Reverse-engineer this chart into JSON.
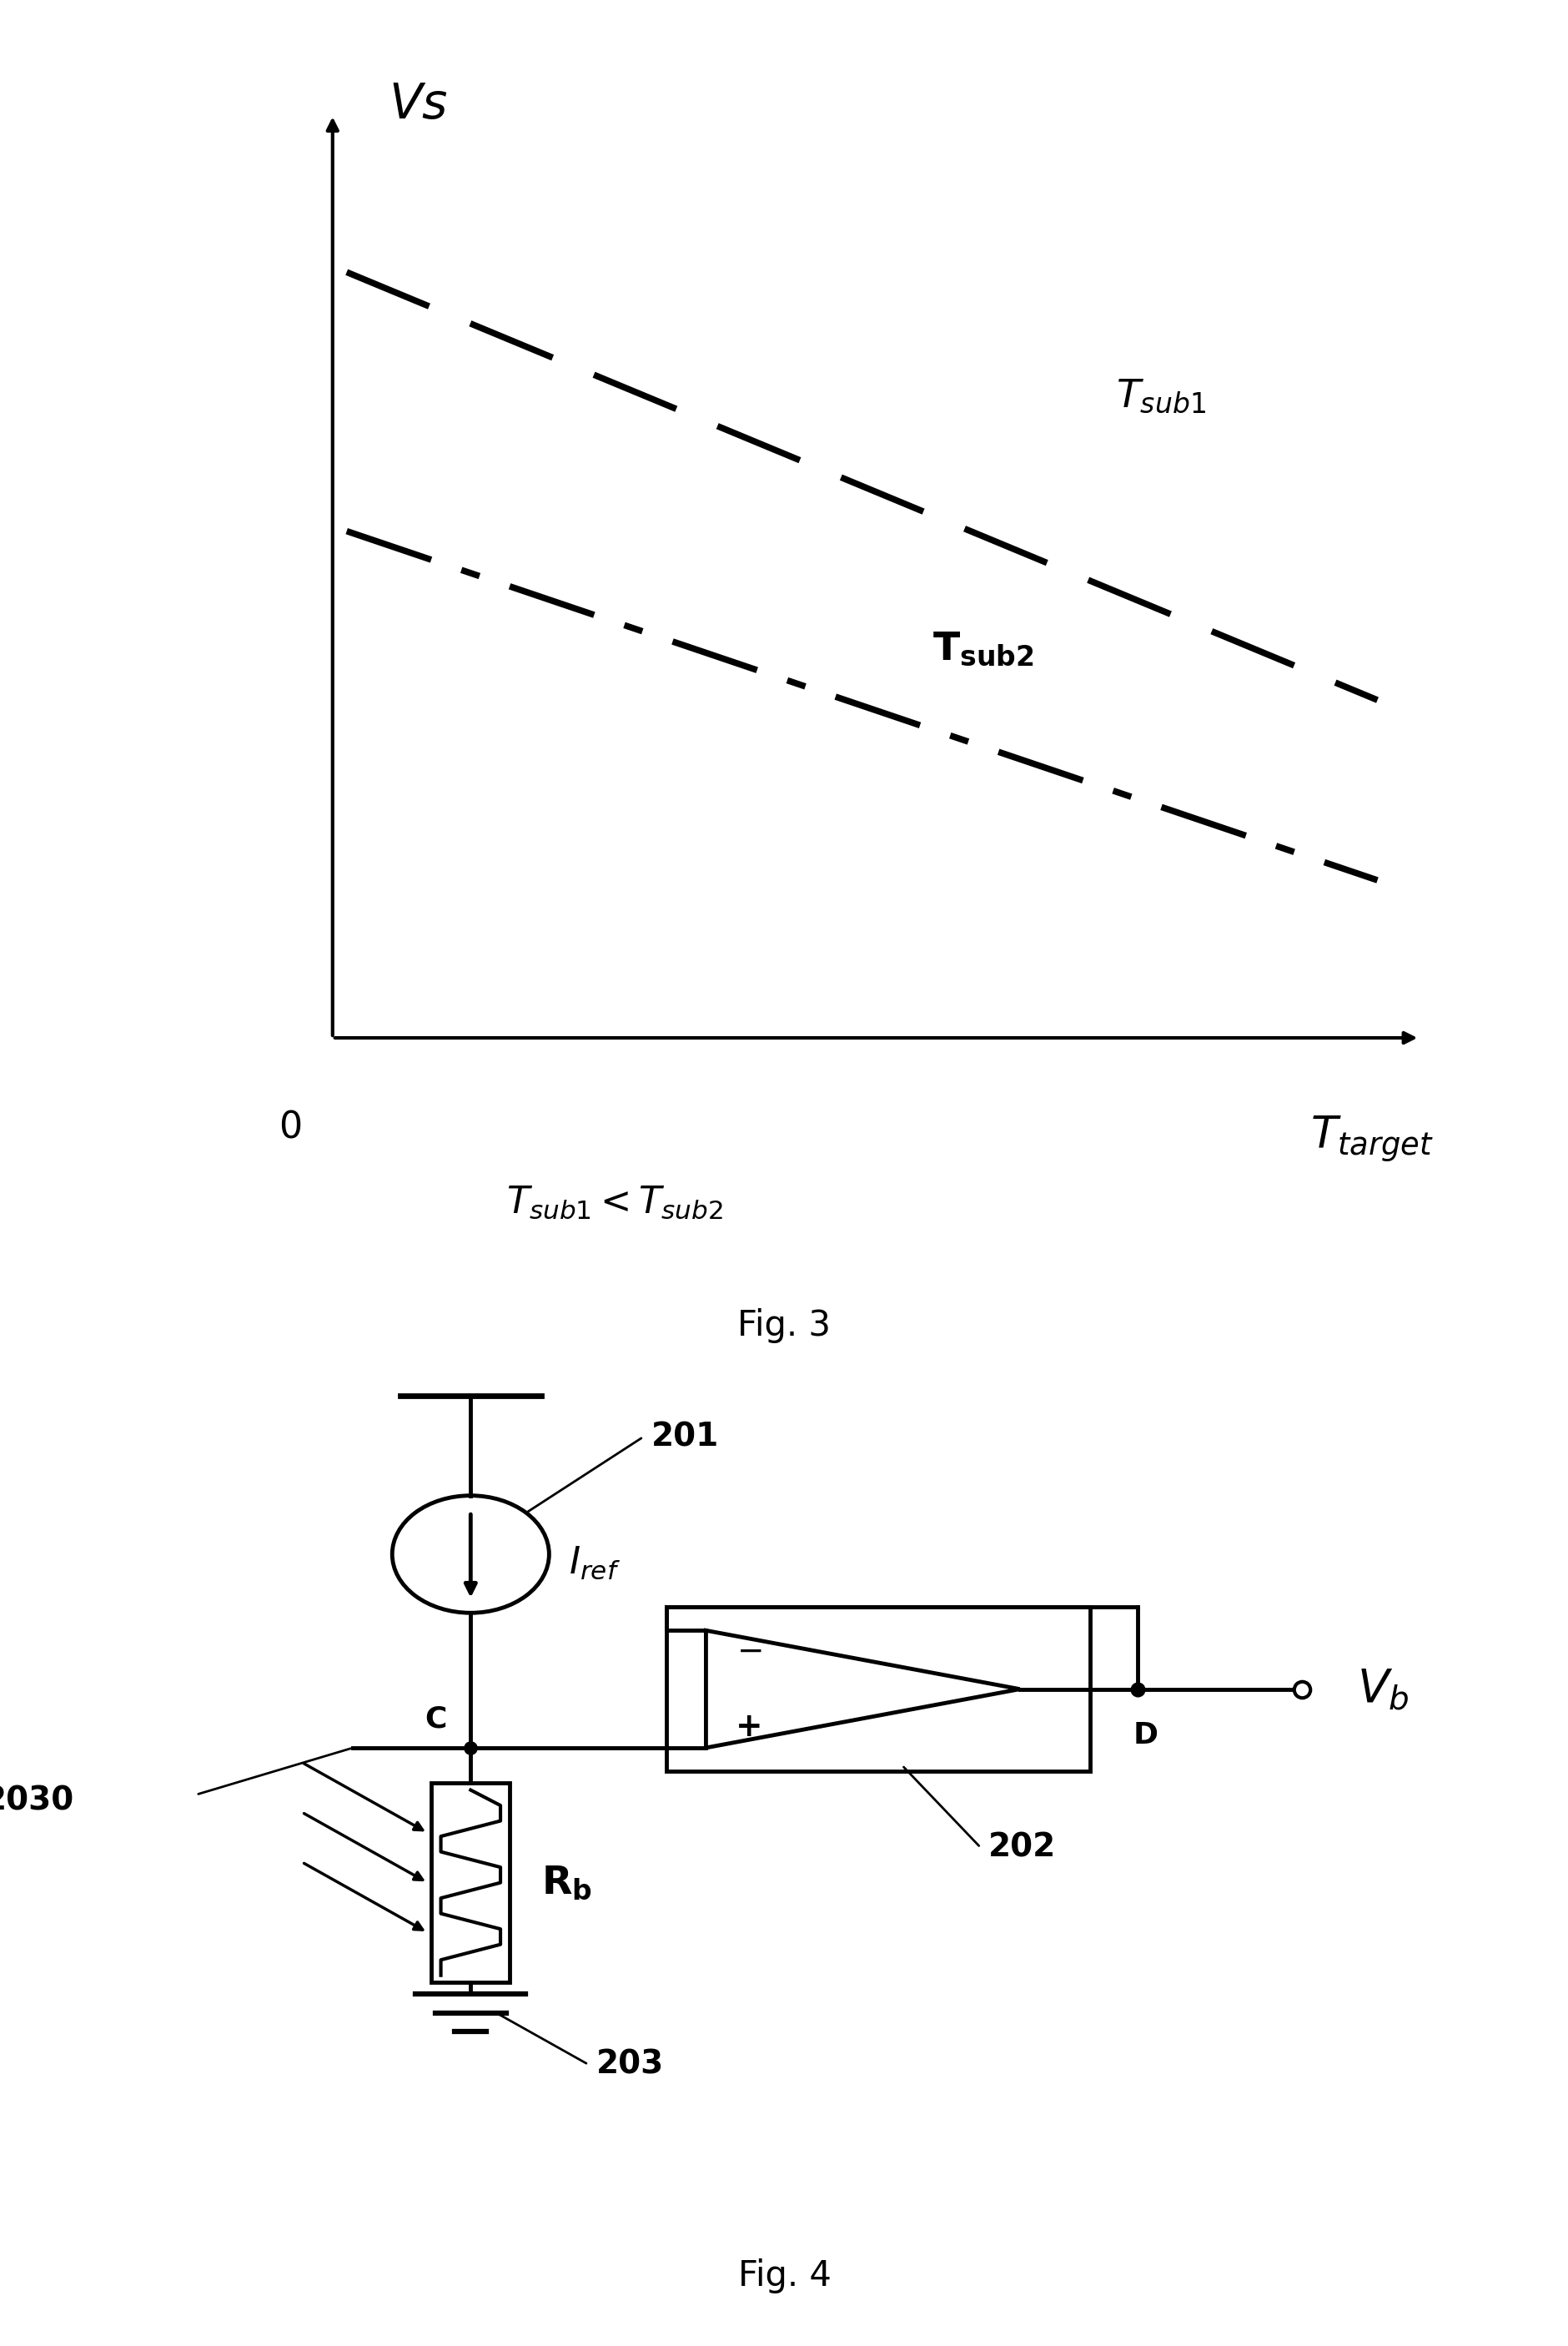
{
  "bg_color": "#ffffff",
  "fig3": {
    "caption": "Fig. 3",
    "vs_label": "$\\mathit{Vs}$",
    "ttarget_label": "$\\mathit{T_{target}}$",
    "zero_label": "0",
    "tsub1_label": "$\\mathit{T_{sub1}}$",
    "tsub2_label": "$\\mathbf{T_{sub2}}$",
    "ineq_label": "$\\mathit{T_{sub1}}<\\mathit{T_{sub2}}$"
  },
  "fig4": {
    "caption": "Fig. 4",
    "iref_label": "$\\mathit{I_{ref}}$",
    "vb_label": "$\\mathit{V_b}$",
    "rb_label": "$\\mathbf{R_b}$",
    "label_201": "201",
    "label_202": "202",
    "label_203": "203",
    "label_2030": "2030",
    "label_c": "C",
    "label_d": "D"
  }
}
